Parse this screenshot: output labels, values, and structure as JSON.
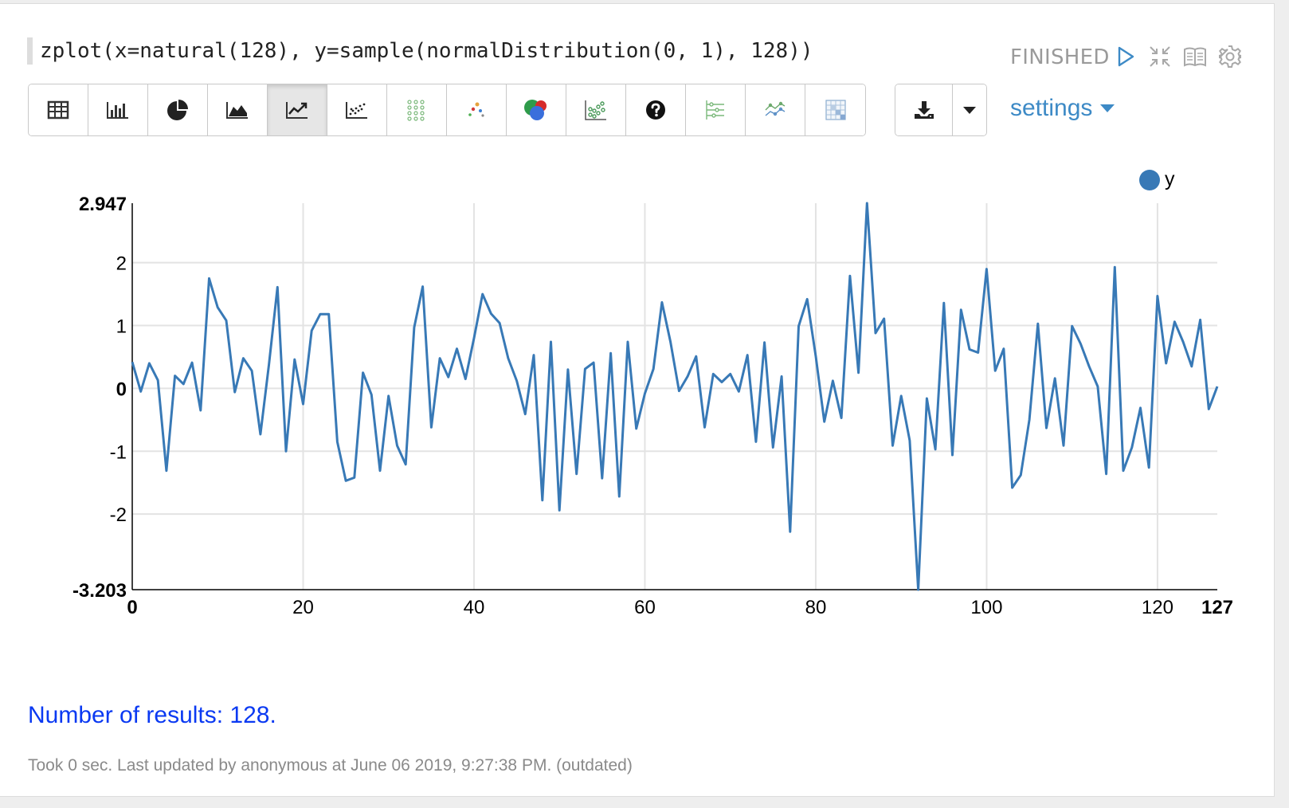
{
  "paragraph": {
    "code": "zplot(x=natural(128), y=sample(normalDistribution(0, 1), 128))",
    "status": "FINISHED",
    "settings_label": "settings",
    "results_text": "Number of results: 128.",
    "footer_text": "Took 0 sec. Last updated by anonymous at June 06 2019, 9:27:38 PM. (outdated)"
  },
  "toolbar": {
    "active_index": 4,
    "buttons": [
      "table-icon",
      "bar-chart-icon",
      "pie-chart-icon",
      "area-chart-icon",
      "line-chart-icon",
      "scatter-chart-icon",
      "scatter-matrix-icon",
      "bubble-chart-icon",
      "venn-icon",
      "point-cloud-icon",
      "help-icon",
      "timeline-icon",
      "multi-line-icon",
      "heatmap-icon"
    ]
  },
  "colors": {
    "series": "#3879b6",
    "link": "#3d8ac6",
    "results": "#0a39f2",
    "status": "#9a9a9a"
  },
  "chart_data": {
    "type": "line",
    "series": [
      {
        "name": "y",
        "x_start": 0,
        "values": [
          0.42,
          -0.05,
          0.4,
          0.13,
          -1.31,
          0.2,
          0.07,
          0.41,
          -0.35,
          1.75,
          1.29,
          1.08,
          -0.06,
          0.48,
          0.28,
          -0.73,
          0.38,
          1.61,
          -1.0,
          0.46,
          -0.25,
          0.92,
          1.18,
          1.18,
          -0.85,
          -1.47,
          -1.42,
          0.25,
          -0.1,
          -1.31,
          -0.12,
          -0.91,
          -1.21,
          0.97,
          1.62,
          -0.62,
          0.48,
          0.18,
          0.63,
          0.15,
          0.8,
          1.5,
          1.19,
          1.04,
          0.48,
          0.12,
          -0.41,
          0.53,
          -1.78,
          0.74,
          -1.94,
          0.3,
          -1.36,
          0.31,
          0.41,
          -1.43,
          0.56,
          -1.72,
          0.74,
          -0.64,
          -0.08,
          0.31,
          1.37,
          0.74,
          -0.04,
          0.19,
          0.51,
          -0.62,
          0.23,
          0.1,
          0.23,
          -0.05,
          0.53,
          -0.85,
          0.73,
          -0.94,
          0.19,
          -2.28,
          0.99,
          1.42,
          0.51,
          -0.53,
          0.12,
          -0.47,
          1.79,
          0.25,
          2.947,
          0.88,
          1.11,
          -0.91,
          -0.12,
          -0.83,
          -3.203,
          -0.16,
          -0.97,
          1.36,
          -1.06,
          1.25,
          0.62,
          0.57,
          1.9,
          0.28,
          0.63,
          -1.58,
          -1.38,
          -0.5,
          1.03,
          -0.63,
          0.16,
          -0.91,
          0.99,
          0.71,
          0.35,
          0.03,
          -1.36,
          1.93,
          -1.31,
          -0.94,
          -0.31,
          -1.26,
          1.47,
          0.4,
          1.06,
          0.74,
          0.35,
          1.09,
          -0.33,
          0.03
        ]
      }
    ],
    "xlim": [
      0,
      127
    ],
    "ylim": [
      -3.203,
      2.947
    ],
    "x_ticks": [
      0,
      20,
      40,
      60,
      80,
      100,
      120,
      127
    ],
    "x_tick_labels": [
      "0",
      "20",
      "40",
      "60",
      "80",
      "100",
      "120",
      "127"
    ],
    "y_ticks": [
      -3.203,
      -2,
      -1,
      0,
      1,
      2,
      2.947
    ],
    "y_tick_labels": [
      "-3.203",
      "-2",
      "-1",
      "0",
      "1",
      "2",
      "2.947"
    ],
    "bold_ticks": [
      "0",
      "127",
      "-3.203",
      "2.947"
    ],
    "grid": true,
    "legend_position": "top-right",
    "title": "",
    "xlabel": "",
    "ylabel": ""
  }
}
